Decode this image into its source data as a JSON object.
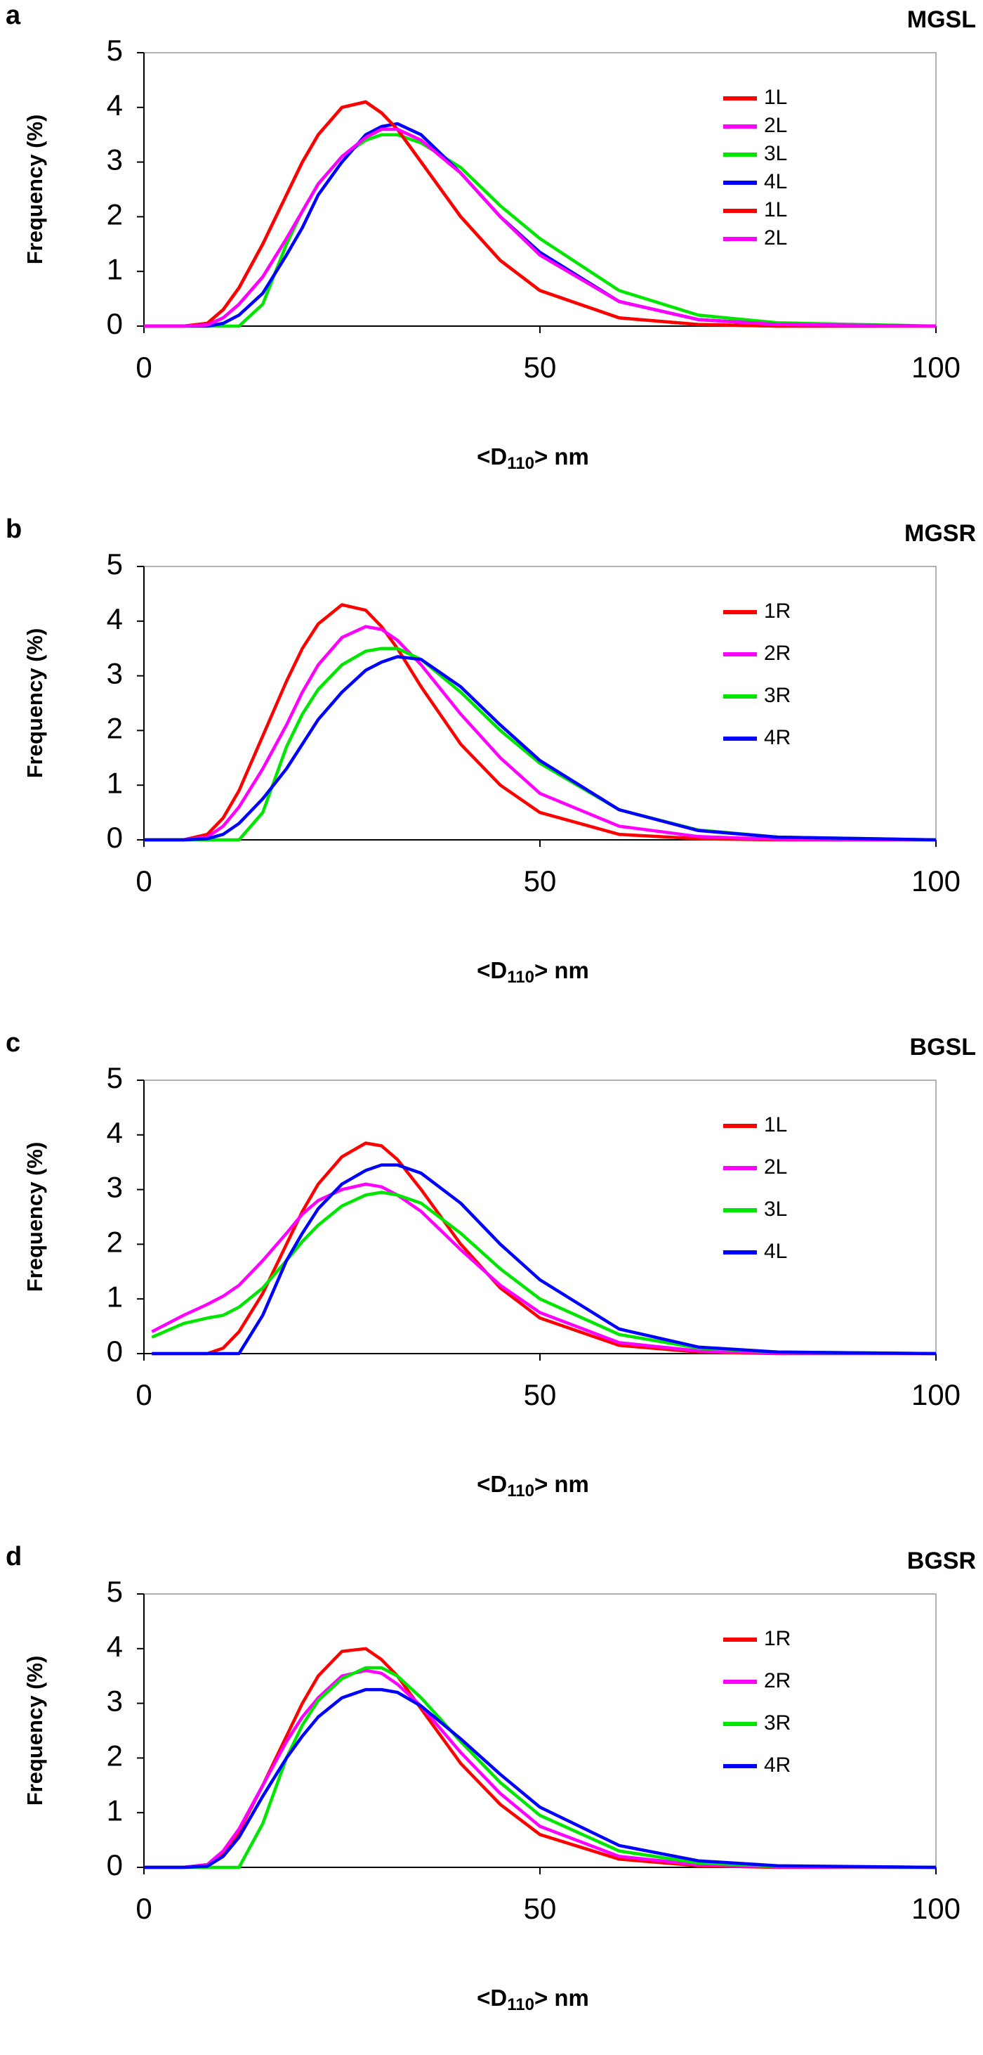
{
  "chart_data": [
    {
      "type": "line",
      "panel_label": "a",
      "title": "MGSL",
      "ylabel": "Frequency (%)",
      "xlabel": [
        "<D",
        "110",
        "> nm"
      ],
      "xlim": [
        0,
        100
      ],
      "ylim": [
        0,
        5
      ],
      "xticks": [
        0,
        50,
        100
      ],
      "yticks": [
        0,
        1,
        2,
        3,
        4,
        5
      ],
      "legend": "right",
      "x": [
        0,
        5,
        8,
        10,
        12,
        15,
        18,
        20,
        22,
        25,
        28,
        30,
        32,
        35,
        40,
        45,
        50,
        60,
        70,
        80,
        100
      ],
      "series": [
        {
          "name": "1L",
          "color": "#ff0000",
          "values": [
            0,
            0,
            0.05,
            0.3,
            0.7,
            1.5,
            2.4,
            3.0,
            3.5,
            4.0,
            4.1,
            3.9,
            3.6,
            3.0,
            2.0,
            1.2,
            0.65,
            0.15,
            0.03,
            0,
            0
          ]
        },
        {
          "name": "2L",
          "color": "#ff00ff",
          "values": [
            0,
            0,
            0.02,
            0.15,
            0.4,
            0.9,
            1.6,
            2.1,
            2.6,
            3.1,
            3.45,
            3.6,
            3.6,
            3.4,
            2.8,
            2.0,
            1.3,
            0.45,
            0.12,
            0.03,
            0
          ]
        },
        {
          "name": "3L",
          "color": "#00e600",
          "values": [
            0,
            0,
            0,
            0,
            0,
            0.4,
            1.5,
            2.1,
            2.6,
            3.1,
            3.4,
            3.5,
            3.5,
            3.35,
            2.9,
            2.2,
            1.6,
            0.65,
            0.2,
            0.06,
            0
          ]
        },
        {
          "name": "4L",
          "color": "#0000ff",
          "values": [
            0,
            0,
            0,
            0.05,
            0.2,
            0.6,
            1.3,
            1.8,
            2.4,
            3.0,
            3.5,
            3.65,
            3.7,
            3.5,
            2.8,
            2.0,
            1.35,
            0.45,
            0.12,
            0.03,
            0
          ]
        },
        {
          "name": "1L",
          "color": "#ff0000",
          "values": [
            0,
            0,
            0.05,
            0.3,
            0.7,
            1.5,
            2.4,
            3.0,
            3.5,
            4.0,
            4.1,
            3.9,
            3.6,
            3.0,
            2.0,
            1.2,
            0.65,
            0.15,
            0.03,
            0,
            0
          ]
        },
        {
          "name": "2L",
          "color": "#ff00ff",
          "values": [
            0,
            0,
            0.02,
            0.15,
            0.4,
            0.9,
            1.6,
            2.1,
            2.6,
            3.1,
            3.45,
            3.6,
            3.6,
            3.4,
            2.8,
            2.0,
            1.3,
            0.45,
            0.12,
            0.03,
            0
          ]
        }
      ]
    },
    {
      "type": "line",
      "panel_label": "b",
      "title": "MGSR",
      "ylabel": "Frequency (%)",
      "xlabel": [
        "<D",
        "110",
        "> nm"
      ],
      "xlim": [
        0,
        100
      ],
      "ylim": [
        0,
        5
      ],
      "xticks": [
        0,
        50,
        100
      ],
      "yticks": [
        0,
        1,
        2,
        3,
        4,
        5
      ],
      "legend": "right",
      "x": [
        0,
        5,
        8,
        10,
        12,
        15,
        18,
        20,
        22,
        25,
        28,
        30,
        32,
        35,
        40,
        45,
        50,
        60,
        70,
        80,
        100
      ],
      "series": [
        {
          "name": "1R",
          "color": "#ff0000",
          "values": [
            0,
            0,
            0.1,
            0.4,
            0.9,
            1.9,
            2.9,
            3.5,
            3.95,
            4.3,
            4.2,
            3.9,
            3.5,
            2.8,
            1.75,
            1.0,
            0.5,
            0.1,
            0.02,
            0,
            0
          ]
        },
        {
          "name": "2R",
          "color": "#ff00ff",
          "values": [
            0,
            0,
            0.05,
            0.25,
            0.6,
            1.3,
            2.1,
            2.7,
            3.2,
            3.7,
            3.9,
            3.85,
            3.65,
            3.2,
            2.3,
            1.5,
            0.85,
            0.25,
            0.06,
            0.01,
            0
          ]
        },
        {
          "name": "3R",
          "color": "#00e600",
          "values": [
            0,
            0,
            0,
            0,
            0,
            0.5,
            1.7,
            2.3,
            2.75,
            3.2,
            3.45,
            3.5,
            3.5,
            3.3,
            2.7,
            2.0,
            1.4,
            0.55,
            0.18,
            0.05,
            0
          ]
        },
        {
          "name": "4R",
          "color": "#0000ff",
          "values": [
            0,
            0,
            0.02,
            0.1,
            0.3,
            0.75,
            1.3,
            1.75,
            2.2,
            2.7,
            3.1,
            3.25,
            3.35,
            3.3,
            2.8,
            2.1,
            1.45,
            0.55,
            0.17,
            0.05,
            0
          ]
        }
      ]
    },
    {
      "type": "line",
      "panel_label": "c",
      "title": "BGSL",
      "ylabel": "Frequency (%)",
      "xlabel": [
        "<D",
        "110",
        "> nm"
      ],
      "xlim": [
        0,
        100
      ],
      "ylim": [
        0,
        5
      ],
      "xticks": [
        0,
        50,
        100
      ],
      "yticks": [
        0,
        1,
        2,
        3,
        4,
        5
      ],
      "legend": "right",
      "x": [
        1,
        5,
        8,
        10,
        12,
        15,
        18,
        20,
        22,
        25,
        28,
        30,
        32,
        35,
        40,
        45,
        50,
        60,
        70,
        80,
        100
      ],
      "series": [
        {
          "name": "1L",
          "color": "#ff0000",
          "values": [
            0,
            0,
            0,
            0.1,
            0.4,
            1.1,
            2.0,
            2.6,
            3.1,
            3.6,
            3.85,
            3.8,
            3.55,
            3.0,
            2.0,
            1.2,
            0.65,
            0.15,
            0.03,
            0,
            0
          ]
        },
        {
          "name": "2L",
          "color": "#ff00ff",
          "values": [
            0.4,
            0.7,
            0.9,
            1.05,
            1.25,
            1.7,
            2.2,
            2.55,
            2.8,
            3.0,
            3.1,
            3.05,
            2.9,
            2.6,
            1.9,
            1.25,
            0.75,
            0.2,
            0.05,
            0.01,
            0
          ]
        },
        {
          "name": "3L",
          "color": "#00e600",
          "values": [
            0.3,
            0.55,
            0.65,
            0.7,
            0.85,
            1.2,
            1.7,
            2.05,
            2.35,
            2.7,
            2.9,
            2.95,
            2.9,
            2.75,
            2.2,
            1.55,
            1.0,
            0.35,
            0.1,
            0.03,
            0
          ]
        },
        {
          "name": "4L",
          "color": "#0000ff",
          "values": [
            0,
            0,
            0,
            0,
            0,
            0.7,
            1.7,
            2.2,
            2.65,
            3.1,
            3.35,
            3.45,
            3.45,
            3.3,
            2.75,
            2.0,
            1.35,
            0.45,
            0.12,
            0.03,
            0
          ]
        }
      ]
    },
    {
      "type": "line",
      "panel_label": "d",
      "title": "BGSR",
      "ylabel": "Frequency (%)",
      "xlabel": [
        "<D",
        "110",
        "> nm"
      ],
      "xlim": [
        0,
        100
      ],
      "ylim": [
        0,
        5
      ],
      "xticks": [
        0,
        50,
        100
      ],
      "yticks": [
        0,
        1,
        2,
        3,
        4,
        5
      ],
      "legend": "right",
      "x": [
        0,
        5,
        8,
        10,
        12,
        15,
        18,
        20,
        22,
        25,
        28,
        30,
        32,
        35,
        40,
        45,
        50,
        60,
        70,
        80,
        100
      ],
      "series": [
        {
          "name": "1R",
          "color": "#ff0000",
          "values": [
            0,
            0,
            0.05,
            0.25,
            0.65,
            1.5,
            2.4,
            3.0,
            3.5,
            3.95,
            4.0,
            3.8,
            3.5,
            2.9,
            1.9,
            1.15,
            0.6,
            0.15,
            0.03,
            0,
            0
          ]
        },
        {
          "name": "2R",
          "color": "#ff00ff",
          "values": [
            0,
            0,
            0.05,
            0.3,
            0.7,
            1.5,
            2.3,
            2.75,
            3.1,
            3.5,
            3.6,
            3.55,
            3.35,
            2.95,
            2.1,
            1.35,
            0.75,
            0.2,
            0.05,
            0.01,
            0
          ]
        },
        {
          "name": "3R",
          "color": "#00e600",
          "values": [
            0,
            0,
            0,
            0,
            0,
            0.8,
            2.0,
            2.6,
            3.05,
            3.45,
            3.65,
            3.65,
            3.5,
            3.1,
            2.3,
            1.55,
            0.95,
            0.3,
            0.08,
            0.02,
            0
          ]
        },
        {
          "name": "4R",
          "color": "#0000ff",
          "values": [
            0,
            0,
            0.02,
            0.2,
            0.55,
            1.3,
            2.0,
            2.4,
            2.75,
            3.1,
            3.25,
            3.25,
            3.2,
            2.95,
            2.35,
            1.7,
            1.1,
            0.4,
            0.12,
            0.03,
            0
          ]
        }
      ]
    }
  ]
}
